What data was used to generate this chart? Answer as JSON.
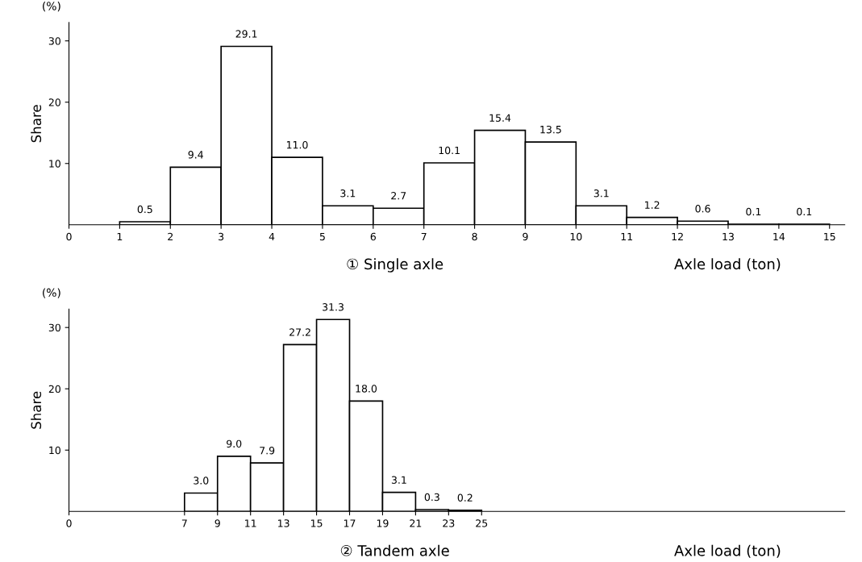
{
  "chart_data": [
    {
      "type": "histogram",
      "title": "① Single axle",
      "xlabel": "Axle load (ton)",
      "ylabel": "Share",
      "annotations": [
        "(%)"
      ],
      "bins": [
        1,
        2,
        3,
        4,
        5,
        6,
        7,
        8,
        9,
        10,
        11,
        12,
        13,
        14,
        15
      ],
      "values": [
        0.5,
        9.4,
        29.1,
        11.0,
        3.1,
        2.7,
        10.1,
        15.4,
        13.5,
        3.1,
        1.2,
        0.6,
        0.1,
        0.1
      ],
      "value_labels": [
        "0.5",
        "9.4",
        "29.1",
        "11.0",
        "3.1",
        "2.7",
        "10.1",
        "15.4",
        "13.5",
        "3.1",
        "1.2",
        "0.6",
        "0.1",
        "0.1"
      ],
      "color": "#ffffff",
      "xlim": [
        0,
        15.3
      ],
      "xticks": [
        0,
        1,
        2,
        3,
        4,
        5,
        6,
        7,
        8,
        9,
        10,
        11,
        12,
        13,
        14,
        15
      ],
      "ylim": [
        0,
        33
      ],
      "yticks": [
        10,
        20,
        30
      ],
      "grid": false
    },
    {
      "type": "histogram",
      "title": "② Tandem axle",
      "xlabel": "Axle load (ton)",
      "ylabel": "Share",
      "annotations": [
        "(%)"
      ],
      "bins": [
        7,
        9,
        11,
        13,
        15,
        17,
        19,
        21,
        23,
        25
      ],
      "values": [
        3.0,
        9.0,
        7.9,
        27.2,
        31.3,
        18.0,
        3.1,
        0.3,
        0.2
      ],
      "value_labels": [
        "3.0",
        "9.0",
        "7.9",
        "27.2",
        "31.3",
        "18.0",
        "3.1",
        "0.3",
        "0.2"
      ],
      "color": "#ffffff",
      "xlim": [
        0,
        47
      ],
      "xticks": [
        0,
        7,
        9,
        11,
        13,
        15,
        17,
        19,
        21,
        23,
        25
      ],
      "ylim": [
        0,
        33
      ],
      "yticks": [
        10,
        20,
        30
      ],
      "grid": false
    }
  ]
}
